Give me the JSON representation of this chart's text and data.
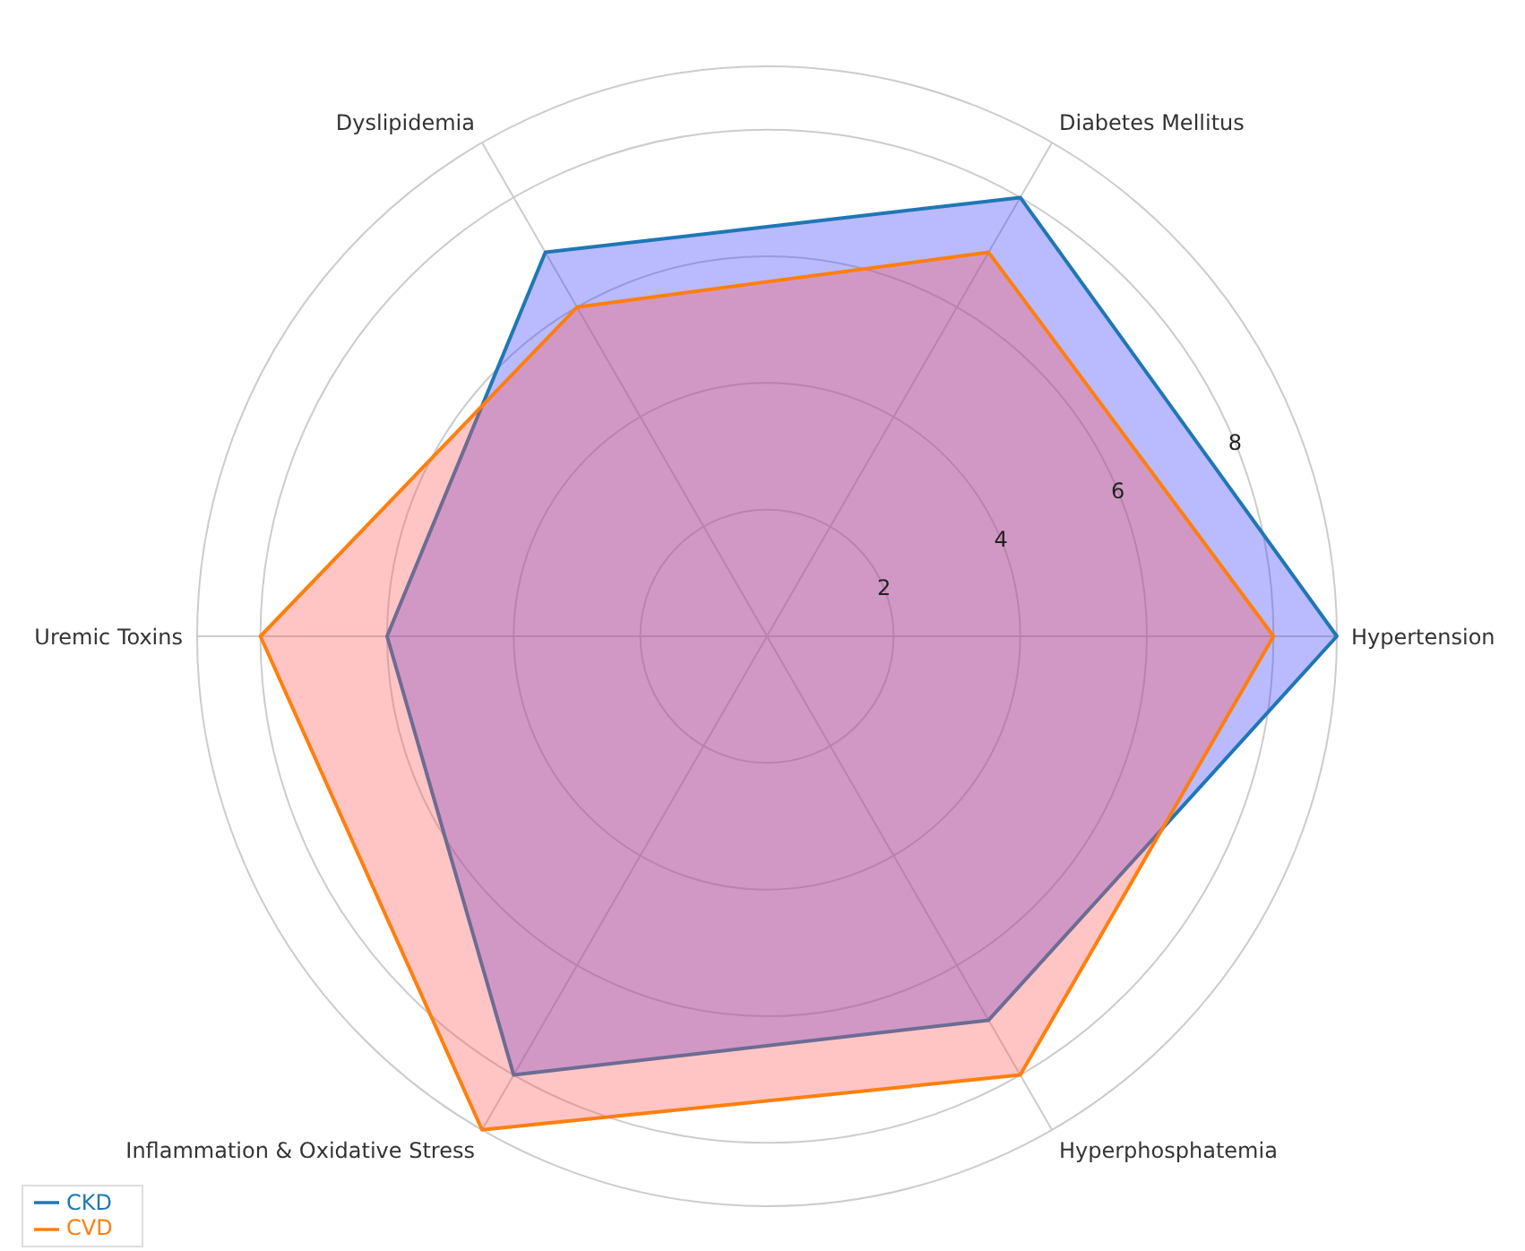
{
  "chart_data": {
    "type": "radar",
    "categories": [
      "Diabetes Mellitus",
      "Hypertension",
      "Hyperphosphatemia",
      "Inflammation & Oxidative Stress",
      "Uremic Toxins",
      "Dyslipidemia"
    ],
    "series": [
      {
        "name": "CKD",
        "color": "#1f77b4",
        "values": [
          8,
          9,
          7,
          8,
          6,
          7
        ]
      },
      {
        "name": "CVD",
        "color": "#ff7f0e",
        "values": [
          7,
          8,
          8,
          9,
          8,
          6
        ]
      }
    ],
    "ylim": [
      0,
      9
    ],
    "yticks": [
      2,
      4,
      6,
      8
    ],
    "grid": true,
    "legend": "bottom left"
  }
}
